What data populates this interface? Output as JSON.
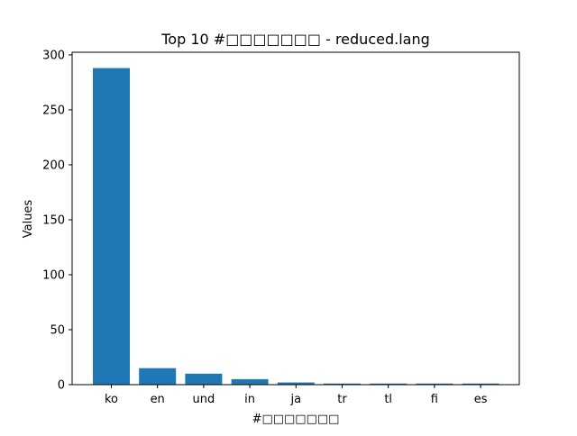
{
  "chart_data": {
    "type": "bar",
    "title": "Top 10 #□□□□□□□ - reduced.lang",
    "xlabel": "#□□□□□□□",
    "ylabel": "Values",
    "categories": [
      "ko",
      "en",
      "und",
      "in",
      "ja",
      "tr",
      "tl",
      "fi",
      "es"
    ],
    "values": [
      288,
      15,
      10,
      5,
      2,
      1,
      1,
      1,
      1
    ],
    "ylim": [
      0,
      300
    ],
    "yticks": [
      0,
      50,
      100,
      150,
      200,
      250,
      300
    ],
    "grid": false,
    "legend": "none",
    "bar_color": "#1f77b4"
  }
}
